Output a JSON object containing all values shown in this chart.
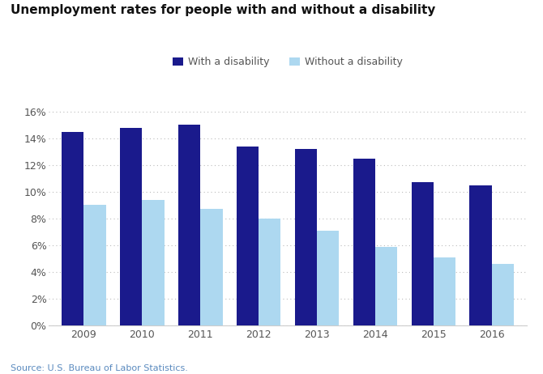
{
  "title": "Unemployment rates for people with and without a disability",
  "years": [
    2009,
    2010,
    2011,
    2012,
    2013,
    2014,
    2015,
    2016
  ],
  "with_disability": [
    14.5,
    14.8,
    15.0,
    13.4,
    13.2,
    12.5,
    10.7,
    10.5
  ],
  "without_disability": [
    9.0,
    9.4,
    8.7,
    8.0,
    7.1,
    5.9,
    5.1,
    4.6
  ],
  "color_with": "#1a1a8c",
  "color_without": "#add8f0",
  "legend_with": "With a disability",
  "legend_without": "Without a disability",
  "ytick_vals": [
    0,
    2,
    4,
    6,
    8,
    10,
    12,
    14,
    16
  ],
  "ylabel_ticks": [
    "0%",
    "2%",
    "4%",
    "6%",
    "8%",
    "10%",
    "12%",
    "14%",
    "16%"
  ],
  "ylim": [
    0,
    16.8
  ],
  "source": "Source: U.S. Bureau of Labor Statistics.",
  "background_color": "#ffffff",
  "grid_color": "#bbbbbb",
  "bar_width": 0.38,
  "title_fontsize": 11,
  "tick_fontsize": 9,
  "legend_fontsize": 9,
  "source_fontsize": 8,
  "source_color": "#5a8abf",
  "tick_color": "#555555"
}
